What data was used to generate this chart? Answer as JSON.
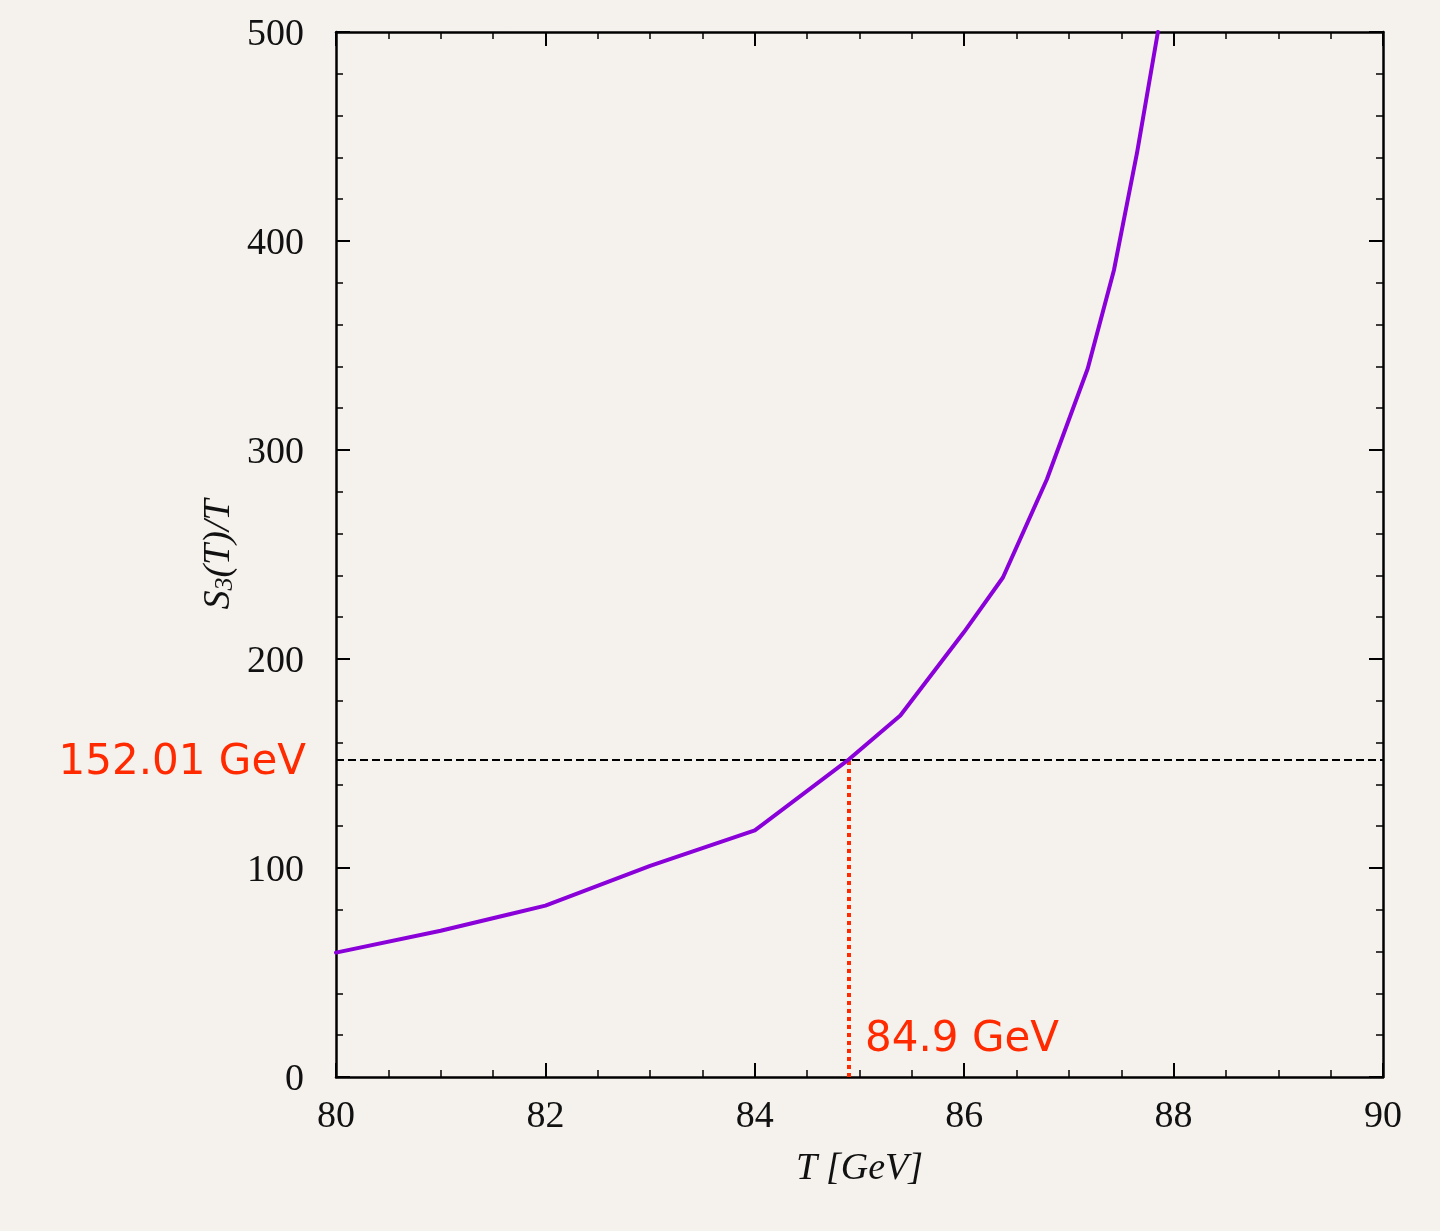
{
  "chart_data": {
    "type": "line",
    "xlabel": "T [GeV]",
    "ylabel": "S$_{3}$(T)/T",
    "x": [
      80,
      81,
      82,
      83,
      84,
      84.9,
      85.39,
      86,
      86.37,
      86.79,
      87.18,
      87.43,
      87.65,
      87.85
    ],
    "series": [
      {
        "color": "#8a00d8",
        "values": [
          59.5,
          70,
          82,
          101,
          118,
          152,
          173,
          213,
          239,
          286,
          339,
          386,
          442,
          500
        ]
      }
    ],
    "xlim": [
      80,
      90
    ],
    "xticks": [
      80,
      82,
      84,
      86,
      88,
      90
    ],
    "ylim": [
      0,
      500
    ],
    "yticks": [
      0,
      100,
      200,
      300,
      400,
      500
    ],
    "grid": false,
    "marker": "none",
    "line_style": "solid",
    "ref_lines": [
      {
        "axis": "y",
        "value": 152.01,
        "label": "152.01 GeV",
        "color": "#000000",
        "line_style": "dashed"
      },
      {
        "axis": "x",
        "value": 84.9,
        "label": "84.9 GeV",
        "color": "#ff2a00",
        "line_style": "dotted"
      }
    ]
  }
}
